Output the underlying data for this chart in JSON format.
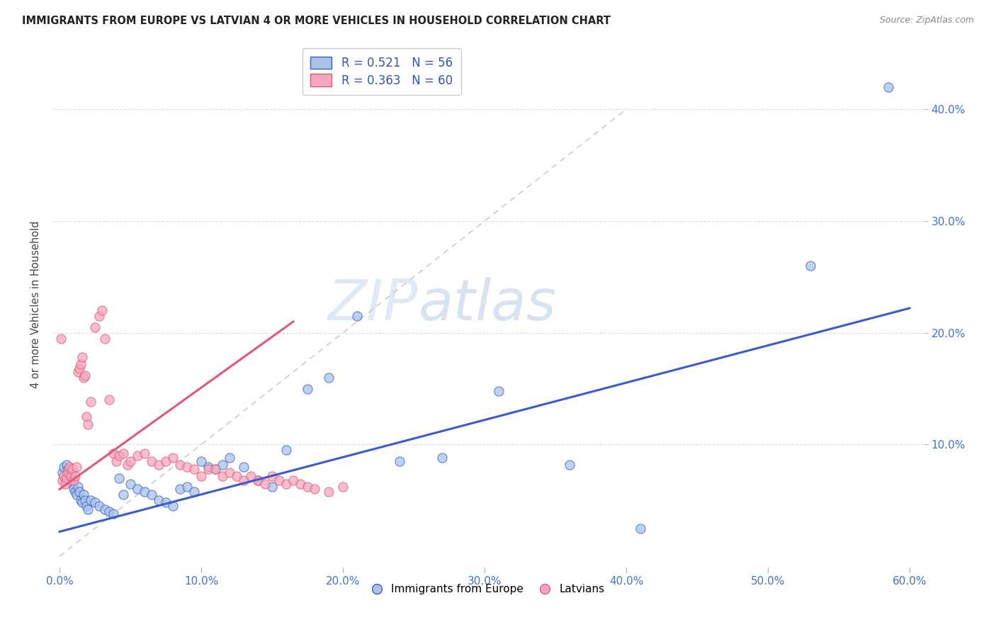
{
  "title": "IMMIGRANTS FROM EUROPE VS LATVIAN 4 OR MORE VEHICLES IN HOUSEHOLD CORRELATION CHART",
  "source": "Source: ZipAtlas.com",
  "ylabel": "4 or more Vehicles in Household",
  "xlim": [
    -0.005,
    0.61
  ],
  "ylim": [
    -0.01,
    0.46
  ],
  "xticks": [
    0.0,
    0.1,
    0.2,
    0.3,
    0.4,
    0.5,
    0.6
  ],
  "xticklabels": [
    "0.0%",
    "10.0%",
    "20.0%",
    "30.0%",
    "40.0%",
    "50.0%",
    "60.0%"
  ],
  "yticks_right": [
    0.1,
    0.2,
    0.3,
    0.4
  ],
  "ytick_right_labels": [
    "10.0%",
    "20.0%",
    "30.0%",
    "40.0%"
  ],
  "legend_r1": "R = 0.521",
  "legend_n1": "N = 56",
  "legend_r2": "R = 0.363",
  "legend_n2": "N = 60",
  "color_blue": "#aac4e8",
  "color_pink": "#f4a8bc",
  "color_blue_line": "#3a5bcd",
  "color_pink_line": "#e05878",
  "color_diag": "#cccccc",
  "watermark_zip": "ZIP",
  "watermark_atlas": "atlas",
  "blue_x": [
    0.002,
    0.003,
    0.004,
    0.005,
    0.006,
    0.007,
    0.008,
    0.009,
    0.01,
    0.011,
    0.012,
    0.013,
    0.014,
    0.015,
    0.016,
    0.017,
    0.018,
    0.019,
    0.02,
    0.022,
    0.025,
    0.028,
    0.032,
    0.035,
    0.038,
    0.042,
    0.045,
    0.05,
    0.055,
    0.06,
    0.065,
    0.07,
    0.075,
    0.08,
    0.085,
    0.09,
    0.095,
    0.1,
    0.105,
    0.11,
    0.115,
    0.12,
    0.13,
    0.14,
    0.15,
    0.16,
    0.175,
    0.19,
    0.21,
    0.24,
    0.27,
    0.31,
    0.36,
    0.41,
    0.53,
    0.585
  ],
  "blue_y": [
    0.075,
    0.08,
    0.07,
    0.082,
    0.078,
    0.068,
    0.072,
    0.065,
    0.06,
    0.058,
    0.055,
    0.062,
    0.058,
    0.05,
    0.048,
    0.055,
    0.05,
    0.045,
    0.042,
    0.05,
    0.048,
    0.045,
    0.042,
    0.04,
    0.038,
    0.07,
    0.055,
    0.065,
    0.06,
    0.058,
    0.055,
    0.05,
    0.048,
    0.045,
    0.06,
    0.062,
    0.058,
    0.085,
    0.08,
    0.078,
    0.082,
    0.088,
    0.08,
    0.068,
    0.062,
    0.095,
    0.15,
    0.16,
    0.215,
    0.085,
    0.088,
    0.148,
    0.082,
    0.025,
    0.26,
    0.42
  ],
  "pink_x": [
    0.001,
    0.002,
    0.003,
    0.004,
    0.005,
    0.006,
    0.007,
    0.008,
    0.009,
    0.01,
    0.011,
    0.012,
    0.013,
    0.014,
    0.015,
    0.016,
    0.017,
    0.018,
    0.019,
    0.02,
    0.022,
    0.025,
    0.028,
    0.03,
    0.032,
    0.035,
    0.038,
    0.04,
    0.042,
    0.045,
    0.048,
    0.05,
    0.055,
    0.06,
    0.065,
    0.07,
    0.075,
    0.08,
    0.085,
    0.09,
    0.095,
    0.1,
    0.105,
    0.11,
    0.115,
    0.12,
    0.125,
    0.13,
    0.135,
    0.14,
    0.145,
    0.15,
    0.155,
    0.16,
    0.165,
    0.17,
    0.175,
    0.18,
    0.19,
    0.2
  ],
  "pink_y": [
    0.195,
    0.068,
    0.072,
    0.065,
    0.07,
    0.075,
    0.08,
    0.072,
    0.078,
    0.068,
    0.072,
    0.08,
    0.165,
    0.168,
    0.172,
    0.178,
    0.16,
    0.162,
    0.125,
    0.118,
    0.138,
    0.205,
    0.215,
    0.22,
    0.195,
    0.14,
    0.092,
    0.085,
    0.09,
    0.092,
    0.082,
    0.085,
    0.09,
    0.092,
    0.085,
    0.082,
    0.085,
    0.088,
    0.082,
    0.08,
    0.078,
    0.072,
    0.078,
    0.078,
    0.072,
    0.075,
    0.072,
    0.068,
    0.072,
    0.068,
    0.065,
    0.072,
    0.068,
    0.065,
    0.068,
    0.065,
    0.062,
    0.06,
    0.058,
    0.062
  ],
  "blue_trend": [
    0.0,
    0.6,
    0.022,
    0.222
  ],
  "pink_trend": [
    0.0,
    0.165,
    0.06,
    0.21
  ],
  "diag_line": [
    0.0,
    0.4,
    0.0,
    0.4
  ]
}
